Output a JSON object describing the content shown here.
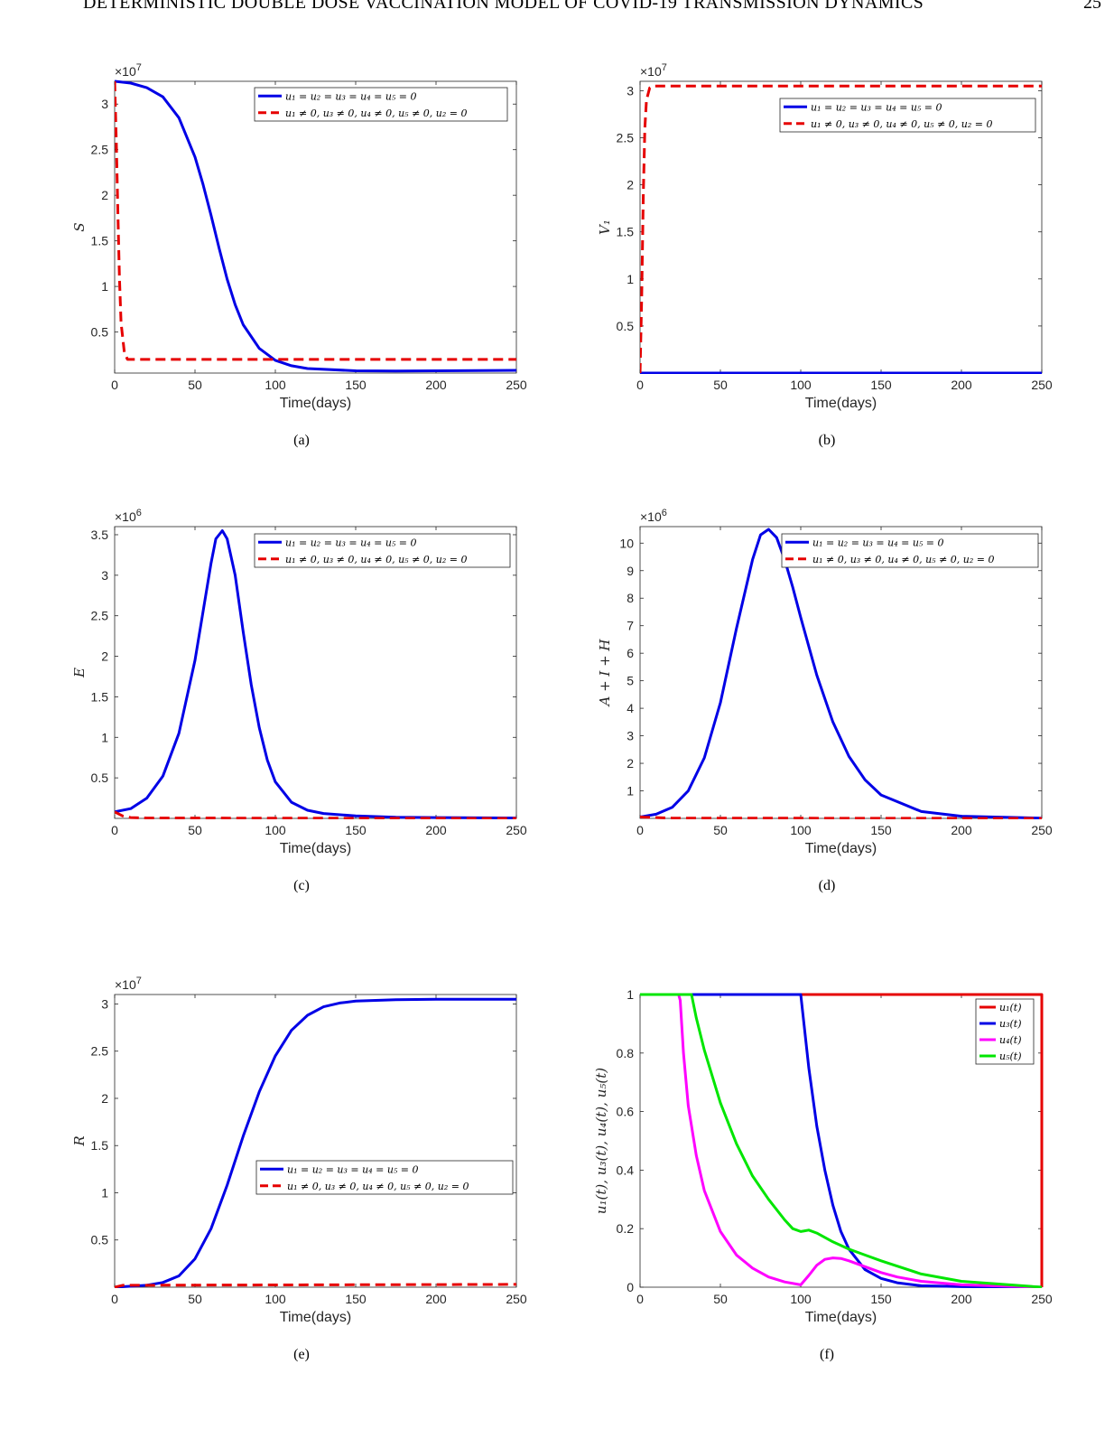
{
  "page": {
    "header": "DETERMINISTIC DOUBLE DOSE VACCINATION MODEL OF COVID-19 TRANSMISSION DYNAMICS",
    "page_number": "25"
  },
  "legend_labels": {
    "no_control": "u₁ = u₂ = u₃ = u₄ = u₅ = 0",
    "control": "u₁ ≠ 0,  u₃ ≠ 0,  u₄ ≠ 0,  u₅ ≠ 0,  u₂ = 0"
  },
  "colors": {
    "blue": "#0000e6",
    "red": "#e60000",
    "magenta": "#ff00ff",
    "green": "#00e600",
    "axis": "#262626"
  },
  "chart_data": [
    {
      "id": "a",
      "caption": "(a)",
      "type": "line",
      "xlabel": "Time(days)",
      "ylabel": "S",
      "exponent": "×10",
      "exponent_power": "7",
      "scale": 10000000,
      "xlim": [
        0,
        250
      ],
      "ylim": [
        0.05,
        3.25
      ],
      "xticks": [
        0,
        50,
        100,
        150,
        200,
        250
      ],
      "yticks": [
        0.5,
        1,
        1.5,
        2,
        2.5,
        3
      ],
      "legend": "top-right",
      "series": [
        {
          "label_key": "no_control",
          "color": "blue",
          "dash": false,
          "x": [
            0,
            10,
            20,
            30,
            40,
            50,
            55,
            60,
            65,
            70,
            75,
            80,
            90,
            100,
            110,
            120,
            150,
            175,
            200,
            250
          ],
          "y": [
            3.25,
            3.23,
            3.18,
            3.08,
            2.85,
            2.42,
            2.12,
            1.78,
            1.42,
            1.08,
            0.8,
            0.58,
            0.32,
            0.19,
            0.13,
            0.1,
            0.075,
            0.072,
            0.075,
            0.08
          ]
        },
        {
          "label_key": "control",
          "color": "red",
          "dash": true,
          "x": [
            0,
            1,
            2,
            3,
            4,
            6,
            8,
            250
          ],
          "y": [
            3.25,
            2.6,
            1.8,
            1.1,
            0.6,
            0.28,
            0.2,
            0.2
          ]
        }
      ]
    },
    {
      "id": "b",
      "caption": "(b)",
      "type": "line",
      "xlabel": "Time(days)",
      "ylabel": "V₁",
      "exponent": "×10",
      "exponent_power": "7",
      "scale": 10000000,
      "xlim": [
        0,
        250
      ],
      "ylim": [
        0,
        3.1
      ],
      "xticks": [
        0,
        50,
        100,
        150,
        200,
        250
      ],
      "yticks": [
        0.5,
        1,
        1.5,
        2,
        2.5,
        3
      ],
      "legend": "top-right",
      "series": [
        {
          "label_key": "no_control",
          "color": "blue",
          "dash": false,
          "x": [
            0,
            250
          ],
          "y": [
            0,
            0
          ]
        },
        {
          "label_key": "control",
          "color": "red",
          "dash": true,
          "x": [
            0,
            1,
            2,
            3,
            4,
            6,
            8,
            250
          ],
          "y": [
            0,
            0.8,
            1.9,
            2.6,
            2.9,
            3.03,
            3.05,
            3.05
          ]
        }
      ]
    },
    {
      "id": "c",
      "caption": "(c)",
      "type": "line",
      "xlabel": "Time(days)",
      "ylabel": "E",
      "exponent": "×10",
      "exponent_power": "6",
      "scale": 1000000,
      "xlim": [
        0,
        250
      ],
      "ylim": [
        0,
        3.6
      ],
      "xticks": [
        0,
        50,
        100,
        150,
        200,
        250
      ],
      "yticks": [
        0.5,
        1,
        1.5,
        2,
        2.5,
        3,
        3.5
      ],
      "legend": "top-right",
      "series": [
        {
          "label_key": "no_control",
          "color": "blue",
          "dash": false,
          "x": [
            0,
            10,
            20,
            30,
            40,
            50,
            55,
            60,
            63,
            67,
            70,
            75,
            80,
            85,
            90,
            95,
            100,
            110,
            120,
            130,
            150,
            175,
            200,
            250
          ],
          "y": [
            0.08,
            0.12,
            0.25,
            0.52,
            1.05,
            1.95,
            2.55,
            3.15,
            3.45,
            3.55,
            3.45,
            3.0,
            2.3,
            1.65,
            1.12,
            0.72,
            0.45,
            0.2,
            0.1,
            0.06,
            0.03,
            0.015,
            0.01,
            0.005
          ]
        },
        {
          "label_key": "control",
          "color": "red",
          "dash": true,
          "x": [
            0,
            5,
            10,
            20,
            250
          ],
          "y": [
            0.08,
            0.03,
            0.01,
            0.005,
            0.0
          ]
        }
      ]
    },
    {
      "id": "d",
      "caption": "(d)",
      "type": "line",
      "xlabel": "Time(days)",
      "ylabel": "A + I + H",
      "exponent": "×10",
      "exponent_power": "6",
      "scale": 1000000,
      "xlim": [
        0,
        250
      ],
      "ylim": [
        0,
        10.6
      ],
      "xticks": [
        0,
        50,
        100,
        150,
        200,
        250
      ],
      "yticks": [
        1,
        2,
        3,
        4,
        5,
        6,
        7,
        8,
        9,
        10
      ],
      "legend": "top-right",
      "series": [
        {
          "label_key": "no_control",
          "color": "blue",
          "dash": false,
          "x": [
            0,
            10,
            20,
            30,
            40,
            50,
            60,
            70,
            75,
            80,
            85,
            90,
            95,
            100,
            110,
            120,
            130,
            140,
            150,
            175,
            200,
            250
          ],
          "y": [
            0.05,
            0.15,
            0.4,
            1.0,
            2.2,
            4.2,
            6.9,
            9.4,
            10.3,
            10.5,
            10.2,
            9.4,
            8.4,
            7.3,
            5.2,
            3.5,
            2.25,
            1.4,
            0.85,
            0.25,
            0.08,
            0.01
          ]
        },
        {
          "label_key": "control",
          "color": "red",
          "dash": true,
          "x": [
            0,
            10,
            20,
            250
          ],
          "y": [
            0.05,
            0.03,
            0.01,
            0.0
          ]
        }
      ]
    },
    {
      "id": "e",
      "caption": "(e)",
      "type": "line",
      "xlabel": "Time(days)",
      "ylabel": "R",
      "exponent": "×10",
      "exponent_power": "7",
      "scale": 10000000,
      "xlim": [
        0,
        250
      ],
      "ylim": [
        0,
        3.1
      ],
      "xticks": [
        0,
        50,
        100,
        150,
        200,
        250
      ],
      "yticks": [
        0.5,
        1,
        1.5,
        2,
        2.5,
        3
      ],
      "legend": "center-right",
      "series": [
        {
          "label_key": "no_control",
          "color": "blue",
          "dash": false,
          "x": [
            0,
            20,
            30,
            40,
            50,
            60,
            70,
            80,
            90,
            100,
            110,
            120,
            130,
            140,
            150,
            175,
            200,
            250
          ],
          "y": [
            0.0,
            0.02,
            0.05,
            0.12,
            0.3,
            0.62,
            1.08,
            1.6,
            2.07,
            2.45,
            2.72,
            2.88,
            2.97,
            3.01,
            3.03,
            3.045,
            3.05,
            3.05
          ]
        },
        {
          "label_key": "control",
          "color": "red",
          "dash": true,
          "x": [
            0,
            5,
            250
          ],
          "y": [
            0.0,
            0.02,
            0.03
          ]
        }
      ]
    },
    {
      "id": "f",
      "caption": "(f)",
      "type": "line",
      "xlabel": "Time(days)",
      "ylabel": "u₁(t), u₃(t), u₄(t), u₅(t)",
      "exponent": "",
      "exponent_power": "",
      "scale": 1,
      "xlim": [
        0,
        250
      ],
      "ylim": [
        0,
        1
      ],
      "xticks": [
        0,
        50,
        100,
        150,
        200,
        250
      ],
      "yticks": [
        0,
        0.2,
        0.4,
        0.6,
        0.8,
        1
      ],
      "legend": "top-right",
      "series": [
        {
          "name": "u₁(t)",
          "color": "red",
          "dash": false,
          "x": [
            0,
            250,
            250
          ],
          "y": [
            1,
            1,
            0
          ]
        },
        {
          "name": "u₃(t)",
          "color": "blue",
          "dash": false,
          "x": [
            0,
            100,
            105,
            110,
            115,
            120,
            125,
            130,
            140,
            150,
            160,
            175,
            200,
            250
          ],
          "y": [
            1,
            1,
            0.75,
            0.55,
            0.4,
            0.28,
            0.19,
            0.13,
            0.06,
            0.03,
            0.015,
            0.005,
            0.002,
            0.0
          ]
        },
        {
          "name": "u₄(t)",
          "color": "magenta",
          "dash": false,
          "x": [
            0,
            24,
            25,
            27,
            30,
            35,
            40,
            50,
            60,
            70,
            80,
            90,
            100,
            105,
            110,
            115,
            120,
            125,
            130,
            140,
            150,
            160,
            175,
            200,
            250
          ],
          "y": [
            1,
            1,
            0.98,
            0.8,
            0.62,
            0.45,
            0.33,
            0.19,
            0.11,
            0.065,
            0.035,
            0.018,
            0.008,
            0.04,
            0.075,
            0.095,
            0.1,
            0.098,
            0.09,
            0.07,
            0.05,
            0.035,
            0.02,
            0.008,
            0.0
          ]
        },
        {
          "name": "u₅(t)",
          "color": "green",
          "dash": false,
          "x": [
            0,
            32,
            35,
            40,
            45,
            50,
            60,
            70,
            80,
            90,
            95,
            100,
            105,
            110,
            120,
            130,
            140,
            150,
            175,
            200,
            250
          ],
          "y": [
            1,
            1,
            0.92,
            0.81,
            0.72,
            0.63,
            0.49,
            0.38,
            0.3,
            0.23,
            0.2,
            0.19,
            0.195,
            0.185,
            0.155,
            0.13,
            0.11,
            0.09,
            0.045,
            0.02,
            0.0
          ]
        }
      ]
    }
  ]
}
